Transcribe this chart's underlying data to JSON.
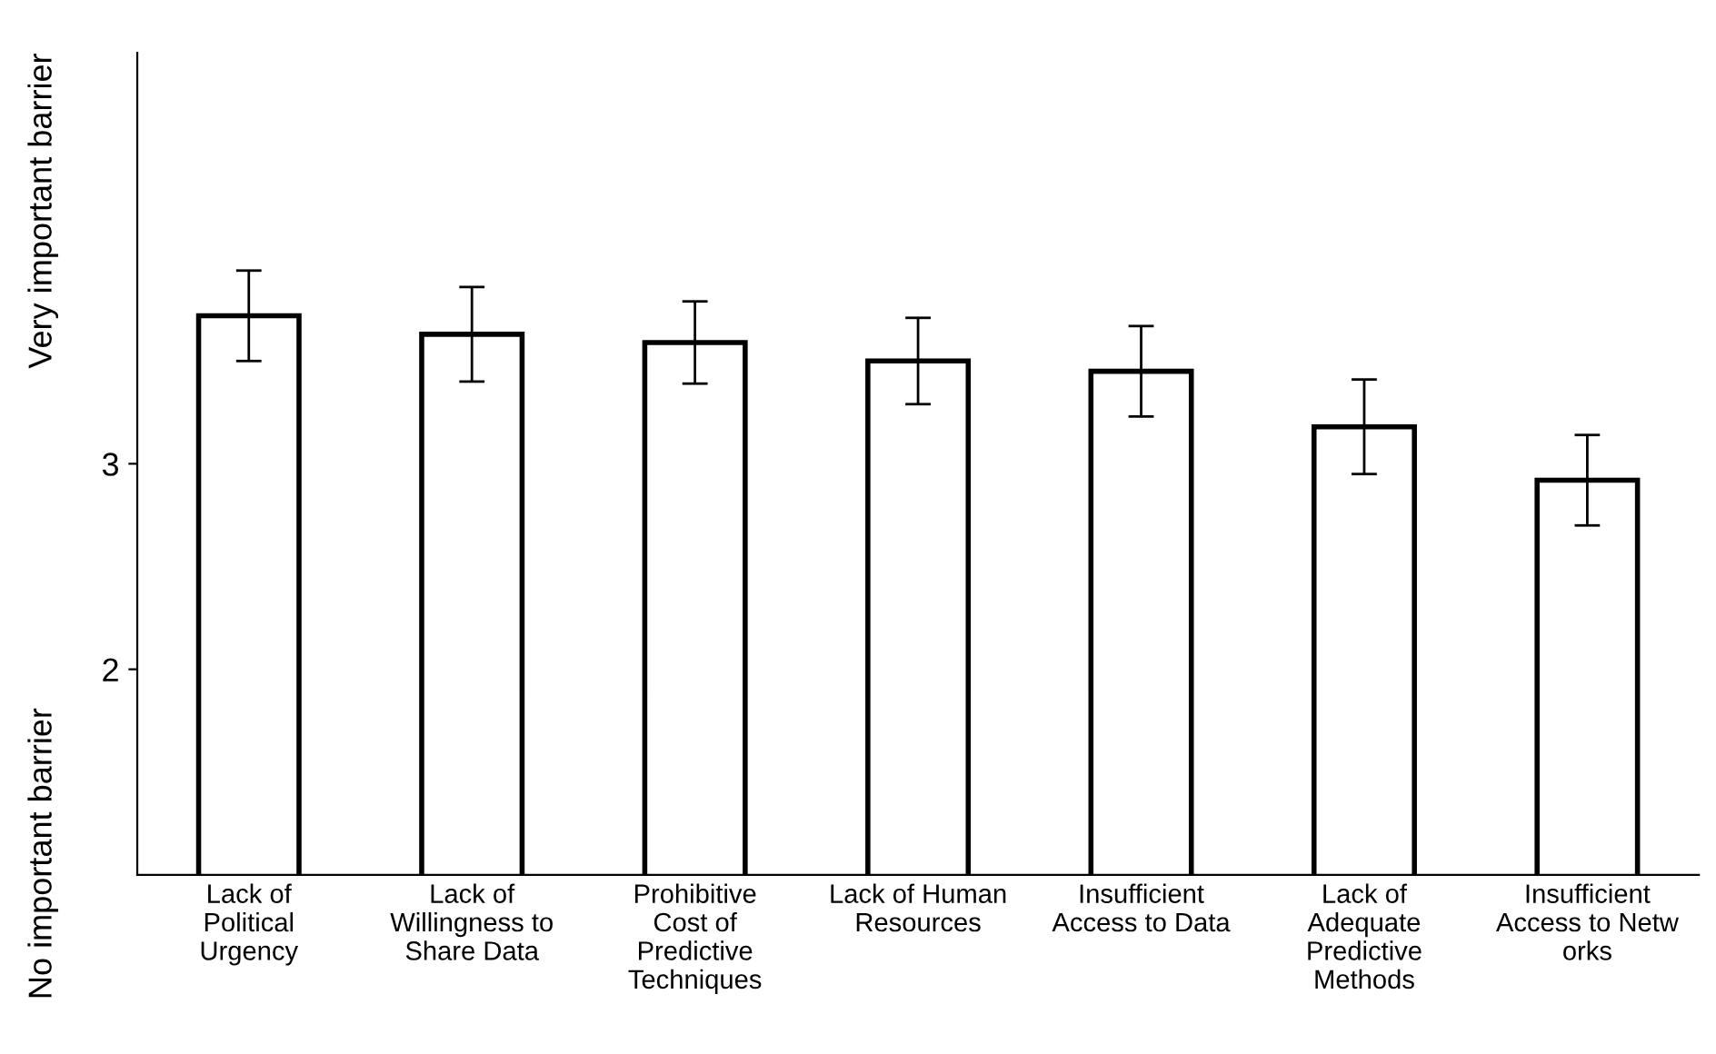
{
  "chart_data": {
    "type": "bar",
    "categories": [
      "Lack of Political Urgency",
      "Lack of Willingness to Share Data",
      "Prohibitive Cost of Predictive Techniques",
      "Lack of Human Resources",
      "Insufficient Access to Data",
      "Lack of Adequate Predictive Methods",
      "Insufficient Access to Netw orks"
    ],
    "values": [
      3.72,
      3.63,
      3.59,
      3.5,
      3.45,
      3.18,
      2.92
    ],
    "errors": [
      0.22,
      0.23,
      0.2,
      0.21,
      0.22,
      0.23,
      0.22
    ],
    "color": "#ffffff",
    "ylim": [
      1,
      5
    ],
    "yticks": [
      2,
      3
    ],
    "grid": false,
    "annotations": [
      "Very important barrier",
      "No important barrier"
    ]
  }
}
